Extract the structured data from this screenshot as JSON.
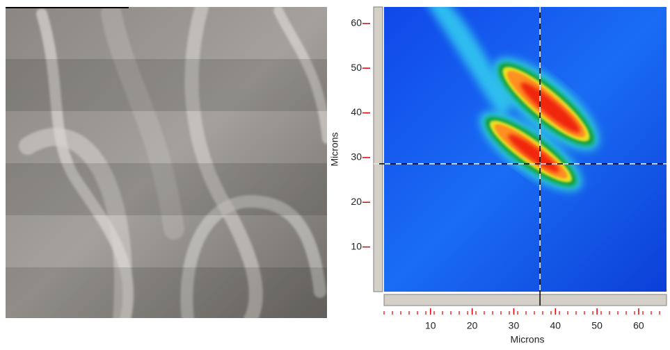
{
  "chart_data": {
    "type": "image-plot",
    "xlabel": "Microns",
    "ylabel": "Microns",
    "xlim": [
      0,
      66.7
    ],
    "ylim": [
      0,
      63.7
    ],
    "xticks": [
      10,
      20,
      30,
      40,
      50,
      60
    ],
    "yticks": [
      10,
      20,
      30,
      40,
      50,
      60
    ],
    "crosshair": {
      "x": 36.3,
      "y": 28.6
    },
    "tick_color": "#e00000"
  }
}
